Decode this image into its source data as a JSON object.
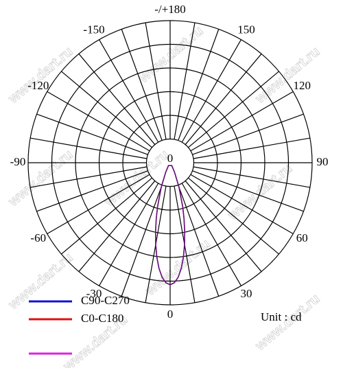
{
  "chart_data": {
    "type": "polar",
    "watermark": "www.dart.ru",
    "rlim": [
      0,
      6
    ],
    "rticks": [
      1,
      2,
      3,
      4,
      5,
      6
    ],
    "r_origin_label": 0,
    "grid_angles": [
      0,
      10,
      20,
      30,
      40,
      50,
      60,
      70,
      80,
      90,
      100,
      110,
      120,
      130,
      140,
      150,
      160,
      170,
      180,
      190,
      200,
      210,
      220,
      230,
      240,
      250,
      260,
      270,
      280,
      290,
      300,
      310,
      320,
      330,
      340,
      350
    ],
    "thetaticks": [
      {
        "value": 180,
        "label": "-/+180"
      },
      150,
      120,
      90,
      60,
      30,
      0,
      -30,
      -60,
      -90,
      -120,
      -150
    ],
    "theta": [
      -30,
      -25,
      -20,
      -16,
      -14,
      -12,
      -10,
      -8,
      -6,
      -4,
      -2,
      0,
      2,
      4,
      6,
      8,
      10,
      12,
      14,
      16,
      20,
      25,
      30
    ],
    "series": [
      {
        "name": "C0-C180",
        "color": "#e01010",
        "values": [
          0.14,
          0.44,
          1.09,
          1.92,
          2.42,
          2.96,
          3.51,
          4.03,
          4.49,
          4.85,
          5.07,
          5.15,
          5.07,
          4.85,
          4.49,
          4.03,
          3.51,
          2.96,
          2.42,
          1.92,
          1.09,
          0.44,
          0.14
        ]
      },
      {
        "name": "C90-C270",
        "color": "#1010d0",
        "values": [
          0.14,
          0.44,
          1.09,
          1.92,
          2.42,
          2.96,
          3.51,
          4.03,
          4.49,
          4.85,
          5.07,
          5.15,
          5.07,
          4.85,
          4.49,
          4.03,
          3.51,
          2.96,
          2.42,
          1.92,
          1.09,
          0.44,
          0.14
        ]
      },
      {
        "name": null,
        "color": "#e020e0",
        "values": [
          0.14,
          0.44,
          1.09,
          1.92,
          2.42,
          2.96,
          3.51,
          4.03,
          4.49,
          4.85,
          5.07,
          5.15,
          5.07,
          4.85,
          4.49,
          4.03,
          3.51,
          2.96,
          2.42,
          1.92,
          1.09,
          0.44,
          0.14
        ]
      }
    ],
    "unit_label": "Unit : cd"
  }
}
